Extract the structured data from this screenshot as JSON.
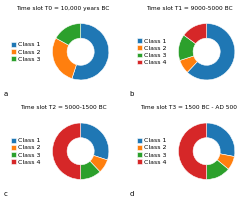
{
  "chart_data": [
    {
      "type": "pie",
      "title": "Time slot T0 = 10,000 years BC",
      "annotations": [
        "a"
      ],
      "categories": [
        "Class 1",
        "Class 2",
        "Class 3"
      ],
      "values": [
        55,
        28,
        17
      ],
      "legend": "center right"
    },
    {
      "type": "pie",
      "title": "Time slot T1 = 9000-5000 BC",
      "annotations": [
        "b"
      ],
      "categories": [
        "Class 1",
        "Class 2",
        "Class 3",
        "Class 4"
      ],
      "values": [
        62,
        8,
        15,
        15
      ],
      "legend": "center right"
    },
    {
      "type": "pie",
      "title": "Time slot T2 = 5000-1500 BC",
      "annotations": [
        "c"
      ],
      "categories": [
        "Class 1",
        "Class 2",
        "Class 3",
        "Class 4"
      ],
      "values": [
        30,
        8,
        12,
        50
      ],
      "legend": "center right"
    },
    {
      "type": "pie",
      "title": "Time slot T3 = 1500 BC - AD 500",
      "annotations": [
        "d"
      ],
      "categories": [
        "Class 1",
        "Class 2",
        "Class 3",
        "Class 4"
      ],
      "values": [
        28,
        8,
        14,
        50
      ],
      "legend": "center right"
    }
  ]
}
